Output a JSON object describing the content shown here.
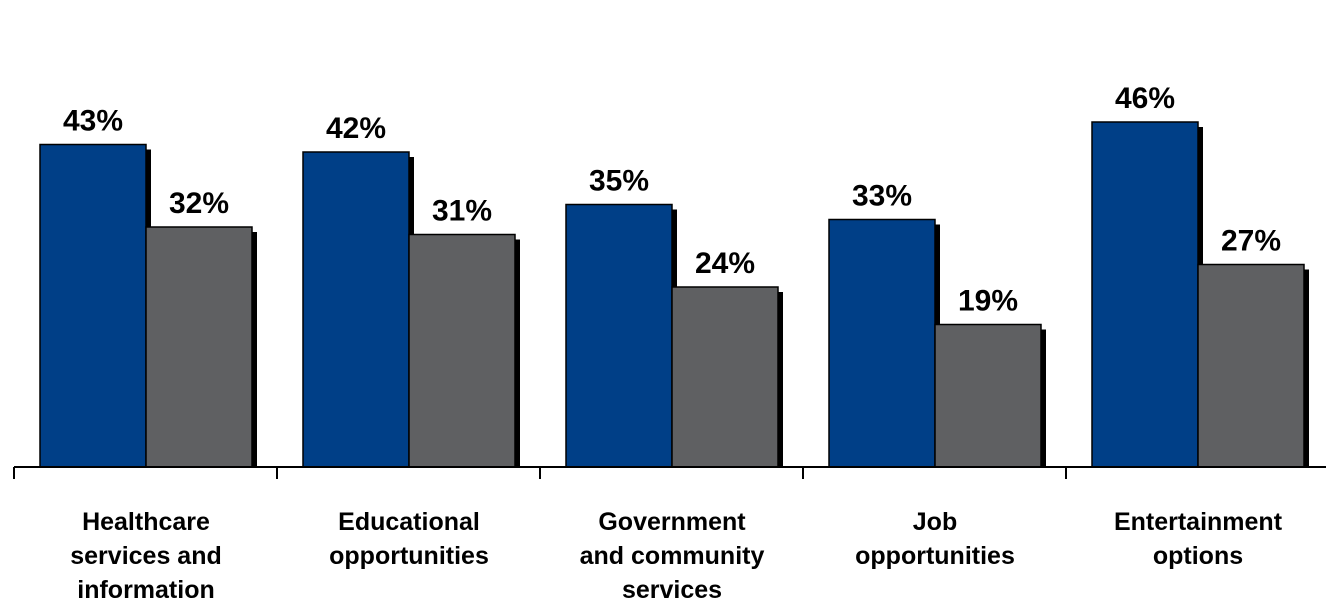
{
  "chart_data": {
    "type": "bar",
    "categories": [
      [
        "Healthcare",
        "services and",
        "information"
      ],
      [
        "Educational",
        "opportunities"
      ],
      [
        "Government",
        "and community",
        "services"
      ],
      [
        "Job",
        "opportunities"
      ],
      [
        "Entertainment",
        "options"
      ]
    ],
    "series": [
      {
        "values": [
          43,
          42,
          35,
          33,
          46
        ],
        "color": "#003F87"
      },
      {
        "values": [
          32,
          31,
          24,
          19,
          27
        ],
        "color": "#5F6062"
      }
    ],
    "value_labels": [
      [
        "43%",
        "42%",
        "35%",
        "33%",
        "46%"
      ],
      [
        "32%",
        "31%",
        "24%",
        "19%",
        "27%"
      ]
    ],
    "ylim": [
      0,
      54
    ],
    "unit": "%",
    "grid": false,
    "legend": "none"
  }
}
